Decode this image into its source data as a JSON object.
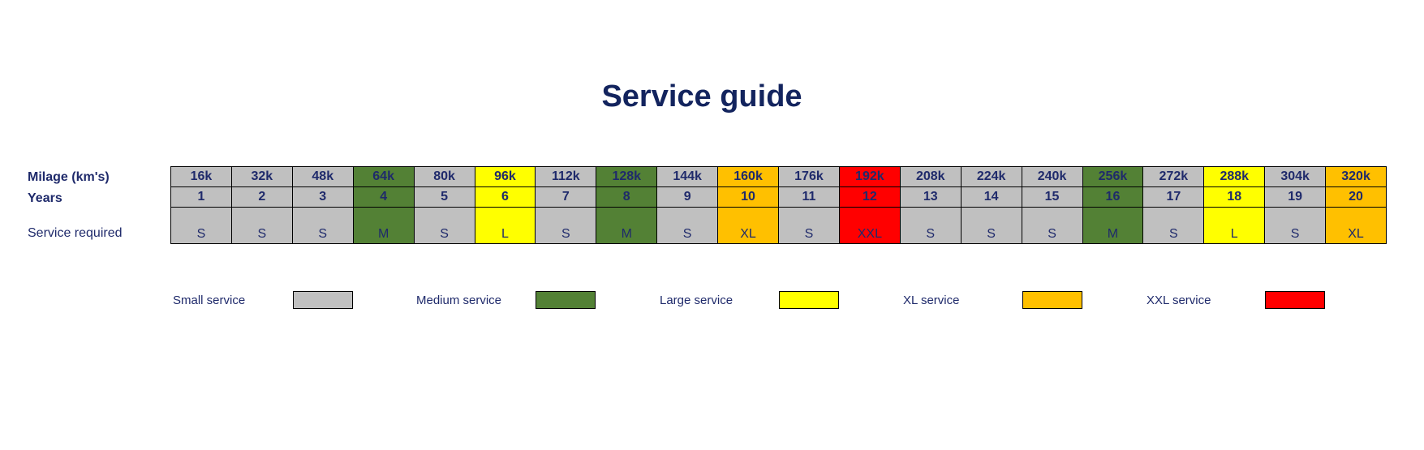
{
  "title": "Service guide",
  "labels": {
    "mileage": "Milage (km's)",
    "years": "Years",
    "service": "Service required"
  },
  "columns": [
    {
      "km": "16k",
      "year": "1",
      "service": "S"
    },
    {
      "km": "32k",
      "year": "2",
      "service": "S"
    },
    {
      "km": "48k",
      "year": "3",
      "service": "S"
    },
    {
      "km": "64k",
      "year": "4",
      "service": "M"
    },
    {
      "km": "80k",
      "year": "5",
      "service": "S"
    },
    {
      "km": "96k",
      "year": "6",
      "service": "L"
    },
    {
      "km": "112k",
      "year": "7",
      "service": "S"
    },
    {
      "km": "128k",
      "year": "8",
      "service": "M"
    },
    {
      "km": "144k",
      "year": "9",
      "service": "S"
    },
    {
      "km": "160k",
      "year": "10",
      "service": "XL"
    },
    {
      "km": "176k",
      "year": "11",
      "service": "S"
    },
    {
      "km": "192k",
      "year": "12",
      "service": "XXL"
    },
    {
      "km": "208k",
      "year": "13",
      "service": "S"
    },
    {
      "km": "224k",
      "year": "14",
      "service": "S"
    },
    {
      "km": "240k",
      "year": "15",
      "service": "S"
    },
    {
      "km": "256k",
      "year": "16",
      "service": "M"
    },
    {
      "km": "272k",
      "year": "17",
      "service": "S"
    },
    {
      "km": "288k",
      "year": "18",
      "service": "L"
    },
    {
      "km": "304k",
      "year": "19",
      "service": "S"
    },
    {
      "km": "320k",
      "year": "20",
      "service": "XL"
    }
  ],
  "legend": [
    {
      "label": "Small service",
      "color": "#c0c0c0"
    },
    {
      "label": "Medium service",
      "color": "#538135"
    },
    {
      "label": "Large service",
      "color": "#ffff00"
    },
    {
      "label": "XL service",
      "color": "#ffc000"
    },
    {
      "label": "XXL service",
      "color": "#ff0000"
    }
  ]
}
